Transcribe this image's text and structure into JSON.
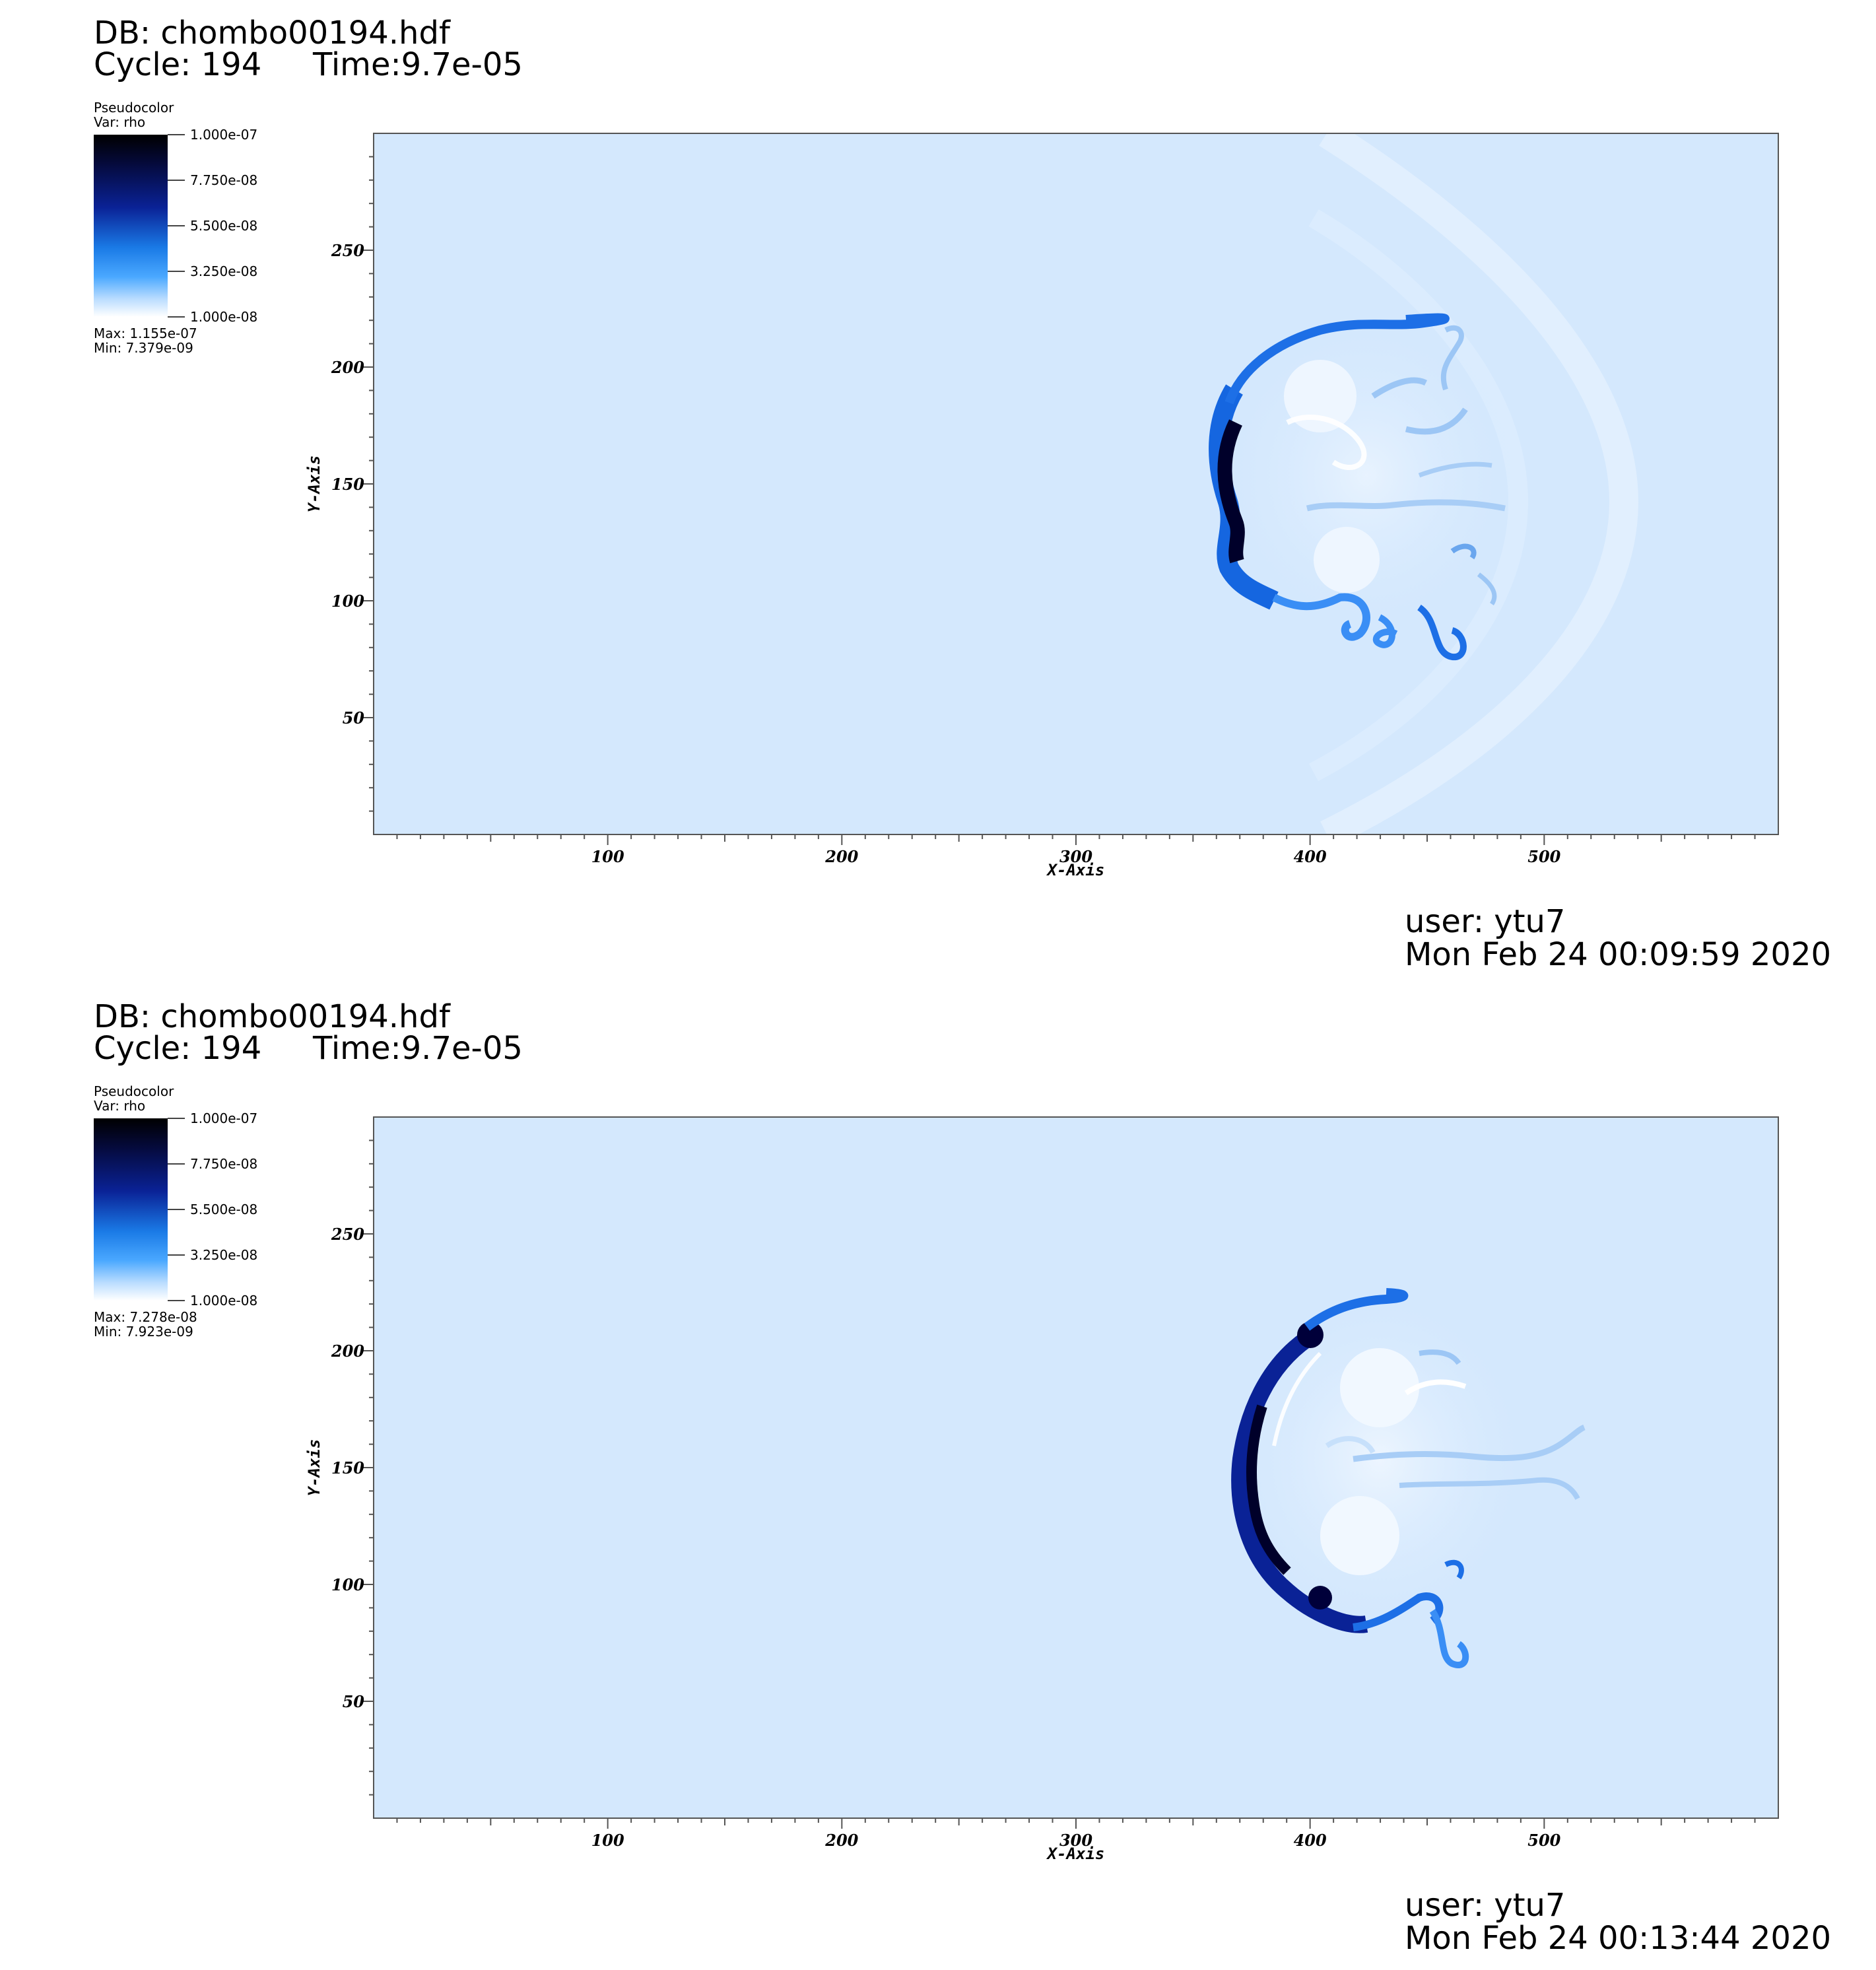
{
  "chart_data": [
    {
      "type": "heatmap",
      "db_title": "DB: chombo00194.hdf",
      "cycle_label": "Cycle: 194",
      "time_label": "Time:9.7e-05",
      "legend": {
        "plot_type": "Pseudocolor",
        "var_label": "Var: rho",
        "ticks": [
          "1.000e-07",
          "7.750e-08",
          "5.500e-08",
          "3.250e-08",
          "1.000e-08"
        ],
        "max_label": "Max:  1.155e-07",
        "min_label": "Min:  7.379e-09"
      },
      "xlabel": "X-Axis",
      "ylabel": "Y-Axis",
      "xlim": [
        0,
        600
      ],
      "ylim": [
        0,
        300
      ],
      "x_ticks": [
        100,
        200,
        300,
        400,
        500
      ],
      "y_ticks": [
        50,
        100,
        150,
        200,
        250
      ],
      "user_label": "user: ytu7",
      "date_label": "Mon Feb 24 00:09:59 2020",
      "colors": {
        "background_field": "#d4e8fd",
        "dense": "#00004a",
        "light": "#ffffff"
      }
    },
    {
      "type": "heatmap",
      "db_title": "DB: chombo00194.hdf",
      "cycle_label": "Cycle: 194",
      "time_label": "Time:9.7e-05",
      "legend": {
        "plot_type": "Pseudocolor",
        "var_label": "Var: rho",
        "ticks": [
          "1.000e-07",
          "7.750e-08",
          "5.500e-08",
          "3.250e-08",
          "1.000e-08"
        ],
        "max_label": "Max:  7.278e-08",
        "min_label": "Min:  7.923e-09"
      },
      "xlabel": "X-Axis",
      "ylabel": "Y-Axis",
      "xlim": [
        0,
        600
      ],
      "ylim": [
        0,
        300
      ],
      "x_ticks": [
        100,
        200,
        300,
        400,
        500
      ],
      "y_ticks": [
        50,
        100,
        150,
        200,
        250
      ],
      "user_label": "user: ytu7",
      "date_label": "Mon Feb 24 00:13:44 2020",
      "colors": {
        "background_field": "#d4e8fd",
        "dense": "#00004a",
        "light": "#ffffff"
      }
    }
  ]
}
